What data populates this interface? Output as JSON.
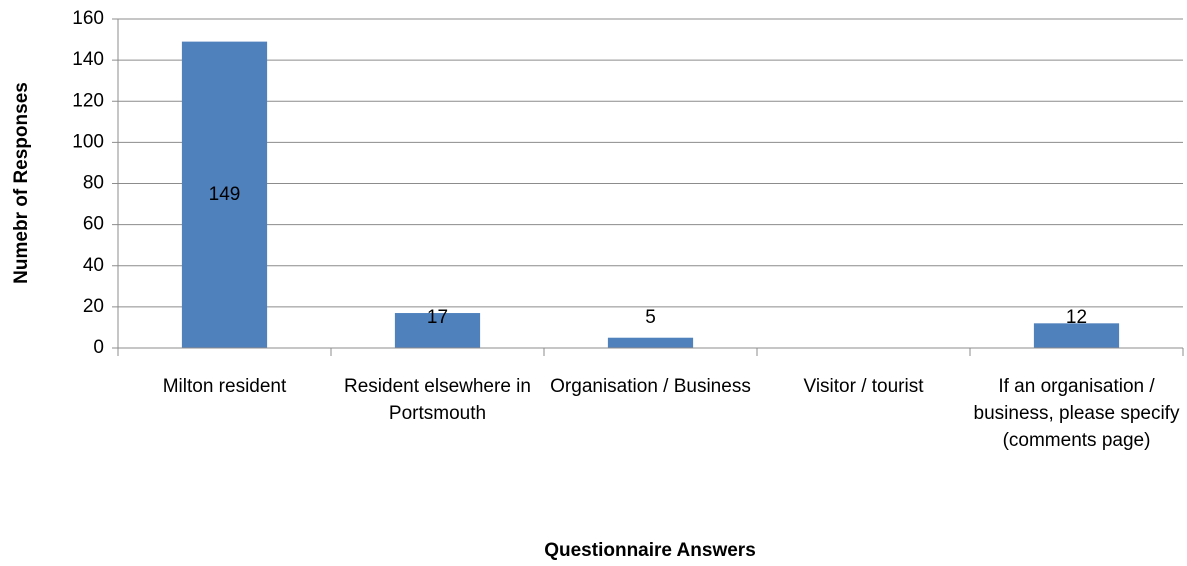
{
  "chart_data": {
    "type": "bar",
    "xlabel": "Questionnaire Answers",
    "ylabel": "Numebr of Responses",
    "categories": [
      "Milton resident",
      "Resident elsewhere in Portsmouth",
      "Organisation / Business",
      "Visitor / tourist",
      "If an organisation / business, please specify (comments page)"
    ],
    "values": [
      149,
      17,
      5,
      null,
      12
    ],
    "color": "#4f81bd",
    "ylim": [
      0,
      160
    ],
    "yticks": [
      0,
      20,
      40,
      60,
      80,
      100,
      120,
      140,
      160
    ],
    "grid": true
  }
}
